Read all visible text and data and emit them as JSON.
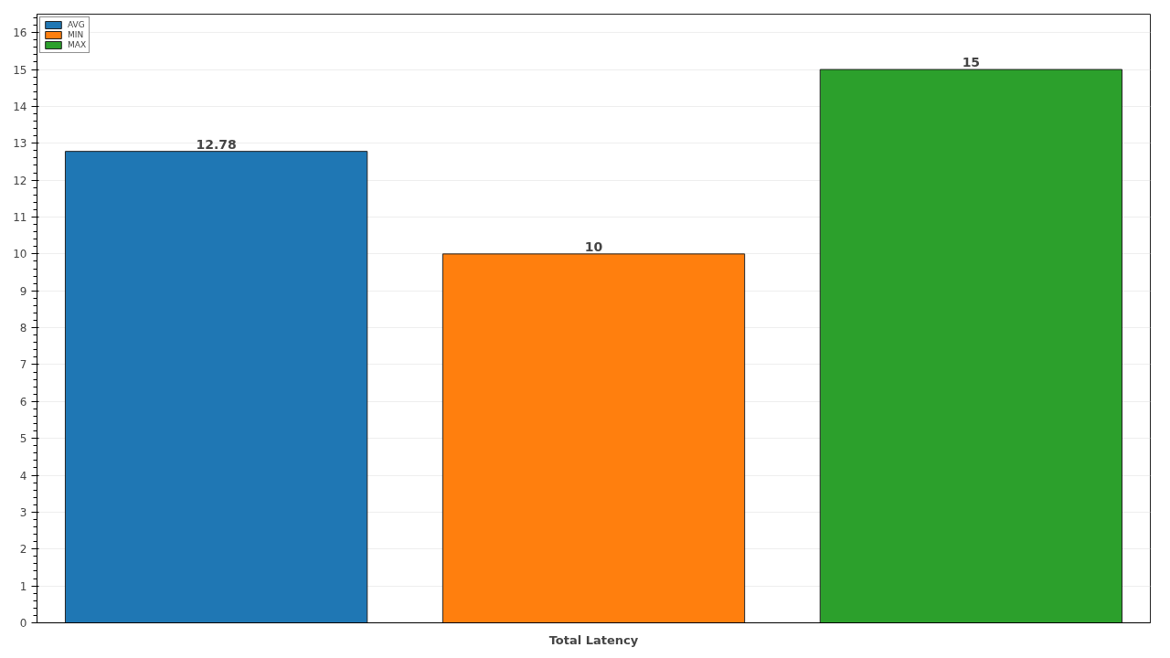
{
  "chart_data": {
    "type": "bar",
    "categories": [
      "Total Latency"
    ],
    "series": [
      {
        "name": "AVG",
        "color": "#1f77b4",
        "values": [
          12.78
        ]
      },
      {
        "name": "MIN",
        "color": "#ff7f0e",
        "values": [
          10
        ]
      },
      {
        "name": "MAX",
        "color": "#2ca02c",
        "values": [
          15
        ]
      }
    ],
    "ylim": [
      0,
      16.5
    ],
    "yticks": [
      0,
      1,
      2,
      3,
      4,
      5,
      6,
      7,
      8,
      9,
      10,
      11,
      12,
      13,
      14,
      15,
      16
    ],
    "grid": "y",
    "legend": "top left",
    "data_labels": true
  }
}
